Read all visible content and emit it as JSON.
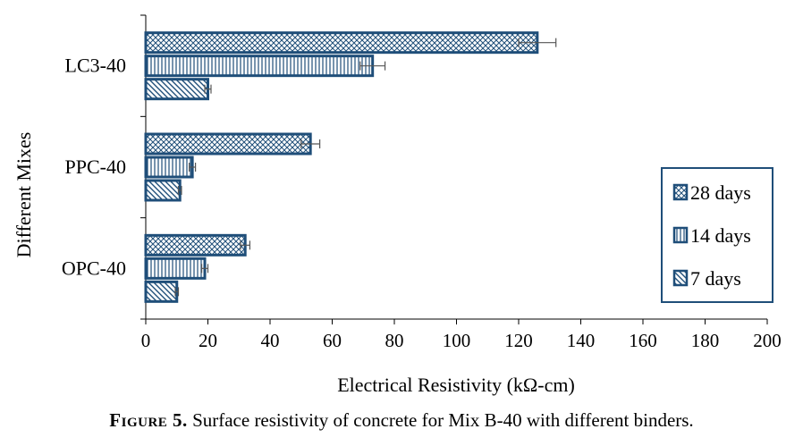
{
  "chart_data": {
    "type": "bar",
    "orientation": "horizontal",
    "categories": [
      "LC3-40",
      "PPC-40",
      "OPC-40"
    ],
    "series": [
      {
        "name": "28 days",
        "values": [
          126,
          53,
          32
        ],
        "errors": [
          6,
          3,
          1.5
        ],
        "pattern": "crosshatch"
      },
      {
        "name": "14 days",
        "values": [
          73,
          15,
          19
        ],
        "errors": [
          4,
          1,
          1
        ],
        "pattern": "vertical-lines"
      },
      {
        "name": "7 days",
        "values": [
          20,
          11,
          10
        ],
        "errors": [
          1,
          0.5,
          0.5
        ],
        "pattern": "diagonal-lines"
      }
    ],
    "xlabel": "Electrical Resistivity (kΩ-cm)",
    "ylabel": "Different Mixes",
    "xlim": [
      0,
      200
    ],
    "xticks": [
      "0",
      "20",
      "40",
      "60",
      "80",
      "100",
      "120",
      "140",
      "160",
      "180",
      "200"
    ],
    "legend_position": "right",
    "grid": false,
    "colors": {
      "bar_stroke": "#1f4e79",
      "axis": "#000000"
    }
  },
  "caption": {
    "label": "Figure 5.",
    "text": "Surface resistivity of concrete for Mix B-40 with different binders."
  }
}
